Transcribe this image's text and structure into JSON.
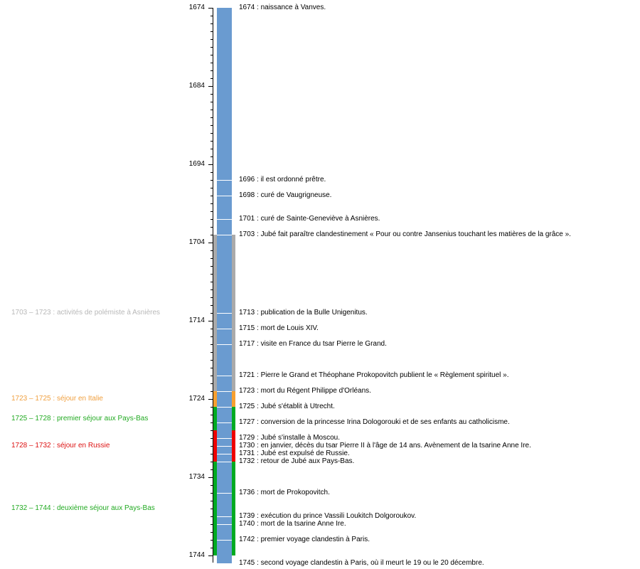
{
  "axis": {
    "start_year": 1674,
    "end_year": 1745,
    "labels": [
      "1674",
      "1684",
      "1694",
      "1704",
      "1714",
      "1724",
      "1734",
      "1744"
    ],
    "label_years": [
      1674,
      1684,
      1694,
      1704,
      1714,
      1724,
      1734,
      1744
    ]
  },
  "life_bar": {
    "from": 1674,
    "to": 1745,
    "color": "#6a9bd0"
  },
  "periods": [
    {
      "from": 1703,
      "to": 1723,
      "label": "1703 – 1723 : activités de polémiste à Asnières",
      "color": "#aaaaaa",
      "text_color": "#b8b8b8"
    },
    {
      "from": 1723,
      "to": 1725,
      "label": "1723 – 1725 : séjour en Italie",
      "color": "#f7a030",
      "text_color": "#f0a040"
    },
    {
      "from": 1725,
      "to": 1728,
      "label": "1725 – 1728 : premier séjour aux Pays-Bas",
      "color": "#00aa22",
      "text_color": "#22aa22"
    },
    {
      "from": 1728,
      "to": 1732,
      "label": "1728 – 1732 : séjour en Russie",
      "color": "#ee0000",
      "text_color": "#dd1111"
    },
    {
      "from": 1732,
      "to": 1744,
      "label": "1732 – 1744 : deuxième séjour aux Pays-Bas",
      "color": "#00aa22",
      "text_color": "#22aa22"
    }
  ],
  "events": [
    {
      "year": 1674,
      "text": "1674 : naissance à Vanves."
    },
    {
      "year": 1696,
      "text": "1696 : il est ordonné prêtre."
    },
    {
      "year": 1698,
      "text": "1698 : curé de Vaugrigneuse."
    },
    {
      "year": 1701,
      "text": "1701 : curé de Sainte-Geneviève à Asnières."
    },
    {
      "year": 1703,
      "text": "1703 : Jubé fait paraître clandestinement « Pour ou contre Jansenius touchant les matières de la grâce »."
    },
    {
      "year": 1713,
      "text": "1713 : publication de la Bulle Unigenitus."
    },
    {
      "year": 1715,
      "text": "1715 : mort de Louis XIV."
    },
    {
      "year": 1717,
      "text": "1717 : visite en France du tsar Pierre le Grand."
    },
    {
      "year": 1721,
      "text": "1721 : Pierre le Grand et Théophane Prokopovitch publient le « Règlement spirituel »."
    },
    {
      "year": 1723,
      "text": "1723 : mort du Régent Philippe d'Orléans."
    },
    {
      "year": 1725,
      "text": "1725 : Jubé s'établit à Utrecht."
    },
    {
      "year": 1727,
      "text": "1727 : conversion de la princesse Irina Dologorouki et de ses enfants au catholicisme."
    },
    {
      "year": 1729,
      "text": "1729 : Jubé s'installe à Moscou."
    },
    {
      "year": 1730,
      "text": "1730 : en janvier, décès du tsar Pierre II à l'âge de 14 ans. Avènement de la tsarine Anne Ire."
    },
    {
      "year": 1731,
      "text": "1731 : Jubé est expulsé de Russie."
    },
    {
      "year": 1732,
      "text": "1732 : retour de Jubé aux Pays-Bas."
    },
    {
      "year": 1736,
      "text": "1736 : mort de Prokopovitch."
    },
    {
      "year": 1739,
      "text": "1739 : exécution du prince Vassili Loukitch Dolgoroukov."
    },
    {
      "year": 1740,
      "text": "1740 : mort de la tsarine Anne Ire."
    },
    {
      "year": 1742,
      "text": "1742 : premier voyage clandestin à Paris."
    },
    {
      "year": 1745,
      "text": "1745 : second voyage clandestin à Paris, où il meurt le 19 ou le 20 décembre."
    }
  ]
}
